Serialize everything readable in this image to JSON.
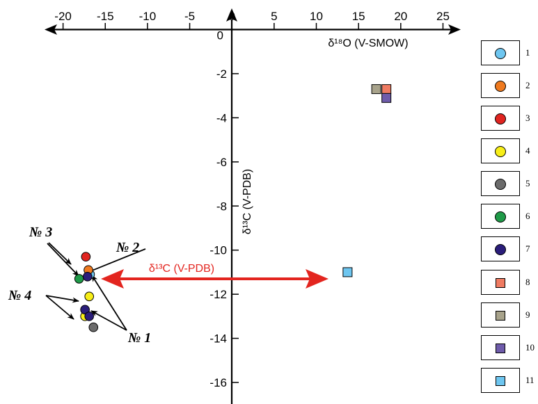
{
  "chart_data": {
    "type": "scatter",
    "xlabel": "δ¹⁸O (V-SMOW)",
    "ylabel": "δ¹³C (V-PDB)",
    "x_ticks": [
      -20,
      -15,
      -10,
      -5,
      0,
      5,
      10,
      15,
      20,
      25
    ],
    "y_ticks": [
      0,
      -2,
      -4,
      -6,
      -8,
      -10,
      -12,
      -14,
      -16
    ],
    "xlim": [
      -22.5,
      27.5
    ],
    "ylim": [
      -16.8,
      0.8
    ],
    "grid": false,
    "legend_position": "right",
    "series": [
      {
        "legend": "1",
        "shape": "circle",
        "color": "#6ec6f0",
        "points": [
          [
            -16.8,
            -11.1
          ]
        ]
      },
      {
        "legend": "2",
        "shape": "circle",
        "color": "#ef7a1f",
        "points": [
          [
            -17.0,
            -10.9
          ]
        ]
      },
      {
        "legend": "3",
        "shape": "circle",
        "color": "#e02420",
        "points": [
          [
            -17.3,
            -10.3
          ]
        ]
      },
      {
        "legend": "4",
        "shape": "circle",
        "color": "#f7ee18",
        "points": [
          [
            -16.9,
            -12.1
          ],
          [
            -17.4,
            -13.0
          ]
        ]
      },
      {
        "legend": "5",
        "shape": "circle",
        "color": "#6b6b6b",
        "points": [
          [
            -16.4,
            -13.5
          ]
        ]
      },
      {
        "legend": "6",
        "shape": "circle",
        "color": "#1f9a48",
        "points": [
          [
            -18.1,
            -11.3
          ]
        ]
      },
      {
        "legend": "7",
        "shape": "circle",
        "color": "#2a1d7a",
        "points": [
          [
            -17.1,
            -11.2
          ],
          [
            -17.4,
            -12.7
          ],
          [
            -16.9,
            -13.0
          ]
        ]
      },
      {
        "legend": "8",
        "shape": "square",
        "color": "#ef7b62",
        "points": [
          [
            18.3,
            -2.7
          ]
        ]
      },
      {
        "legend": "9",
        "shape": "square",
        "color": "#a8a38b",
        "points": [
          [
            17.1,
            -2.7
          ]
        ]
      },
      {
        "legend": "10",
        "shape": "square",
        "color": "#6f5cab",
        "points": [
          [
            18.3,
            -3.1
          ]
        ]
      },
      {
        "legend": "11",
        "shape": "square",
        "color": "#6ec6f0",
        "points": [
          [
            13.7,
            -11.0
          ]
        ]
      }
    ],
    "annotations": [
      {
        "text": "№ 3"
      },
      {
        "text": "№ 2"
      },
      {
        "text": "№ 4"
      },
      {
        "text": "№ 1"
      },
      {
        "text": "δ¹³C (V-PDB)",
        "color": "#e3251f"
      }
    ]
  },
  "legend": {
    "items": [
      "1",
      "2",
      "3",
      "4",
      "5",
      "6",
      "7",
      "8",
      "9",
      "10",
      "11"
    ]
  }
}
